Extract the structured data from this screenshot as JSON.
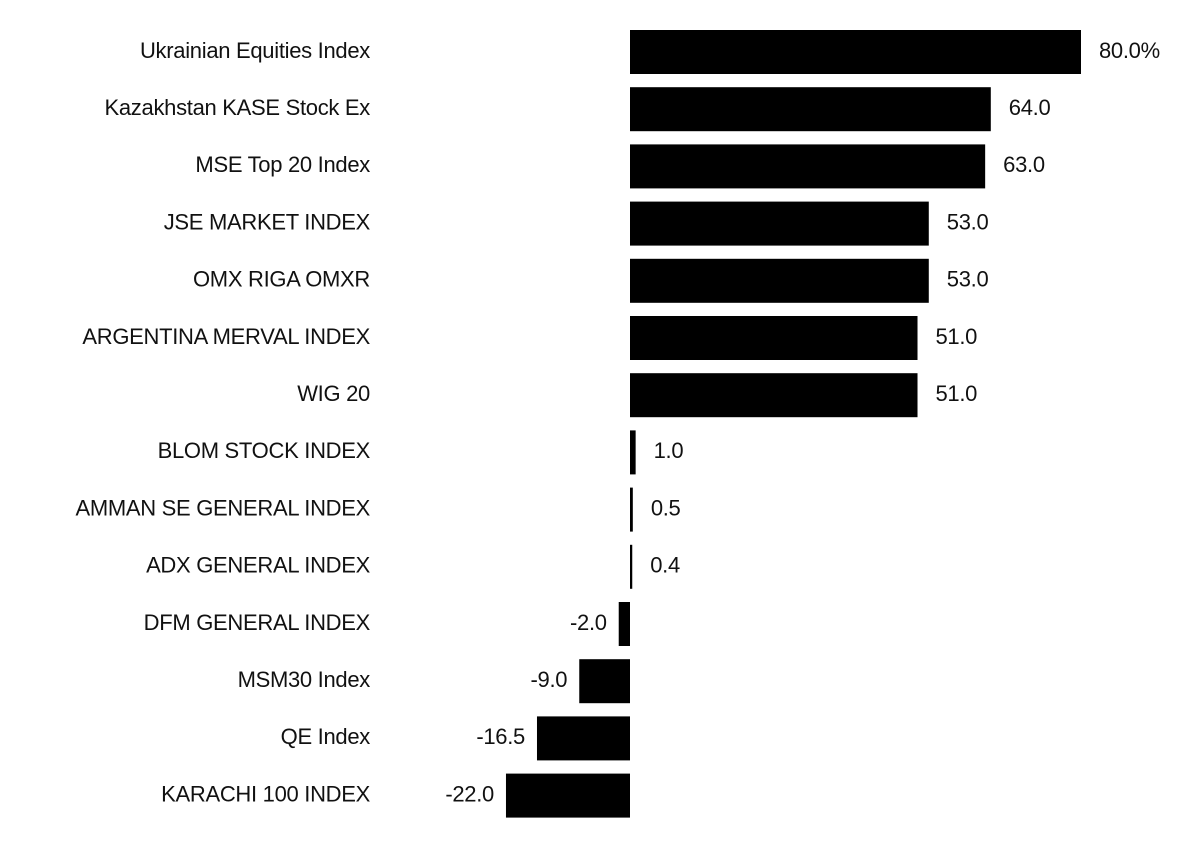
{
  "chart_data": {
    "type": "bar",
    "orientation": "horizontal",
    "categories": [
      "Ukrainian Equities Index",
      "Kazakhstan KASE Stock Ex",
      "MSE Top 20 Index",
      "JSE MARKET INDEX",
      "OMX RIGA OMXR",
      "ARGENTINA MERVAL INDEX",
      "WIG 20",
      "BLOM STOCK INDEX",
      "AMMAN SE GENERAL INDEX",
      "ADX GENERAL INDEX",
      "DFM GENERAL INDEX",
      "MSM30 Index",
      "QE Index",
      "KARACHI 100 INDEX"
    ],
    "values": [
      80,
      64,
      63,
      53,
      53,
      51,
      51,
      1,
      0.5,
      0.4,
      -2,
      -9,
      -16.5,
      -22
    ],
    "value_labels": [
      "80.0%",
      "64.0",
      "63.0",
      "53.0",
      "53.0",
      "51.0",
      "51.0",
      "1.0",
      "0.5",
      "0.4",
      "-2.0",
      "-9.0",
      "-16.5",
      "-22.0"
    ],
    "color": "#000000"
  }
}
